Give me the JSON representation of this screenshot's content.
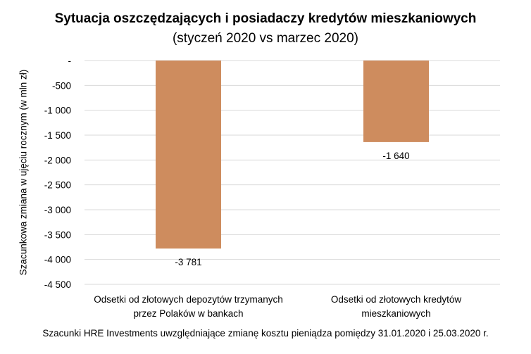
{
  "chart_data": {
    "type": "bar",
    "title": "Sytuacja oszczędzających i posiadaczy kredytów mieszkaniowych",
    "subtitle": "(styczeń 2020 vs marzec 2020)",
    "xlabel": "",
    "ylabel": "Szacunkowa zmiana w ujęciu rocznym (w mln zł)",
    "ylim": [
      -4500,
      0
    ],
    "yticks": [
      0,
      -500,
      -1000,
      -1500,
      -2000,
      -2500,
      -3000,
      -3500,
      -4000,
      -4500
    ],
    "ytick_labels": [
      "-",
      "-500",
      "-1 000",
      "-1 500",
      "-2 000",
      "-2 500",
      "-3 000",
      "-3 500",
      "-4 000",
      "-4 500"
    ],
    "categories": [
      [
        "Odsetki od złotowych depozytów trzymanych",
        "przez Polaków w bankach"
      ],
      [
        "Odsetki od złotowych kredytów",
        "mieszkaniowych"
      ]
    ],
    "values": [
      -3781,
      -1640
    ],
    "data_labels": [
      "-3 781",
      "-1 640"
    ],
    "grid": true,
    "legend": "none",
    "bar_color": "#CE8C5E",
    "grid_color": "#D9D9D9"
  },
  "footnote": "Szacunki HRE Investments uwzględniające zmianę kosztu pieniądza pomiędzy 31.01.2020 i 25.03.2020 r."
}
